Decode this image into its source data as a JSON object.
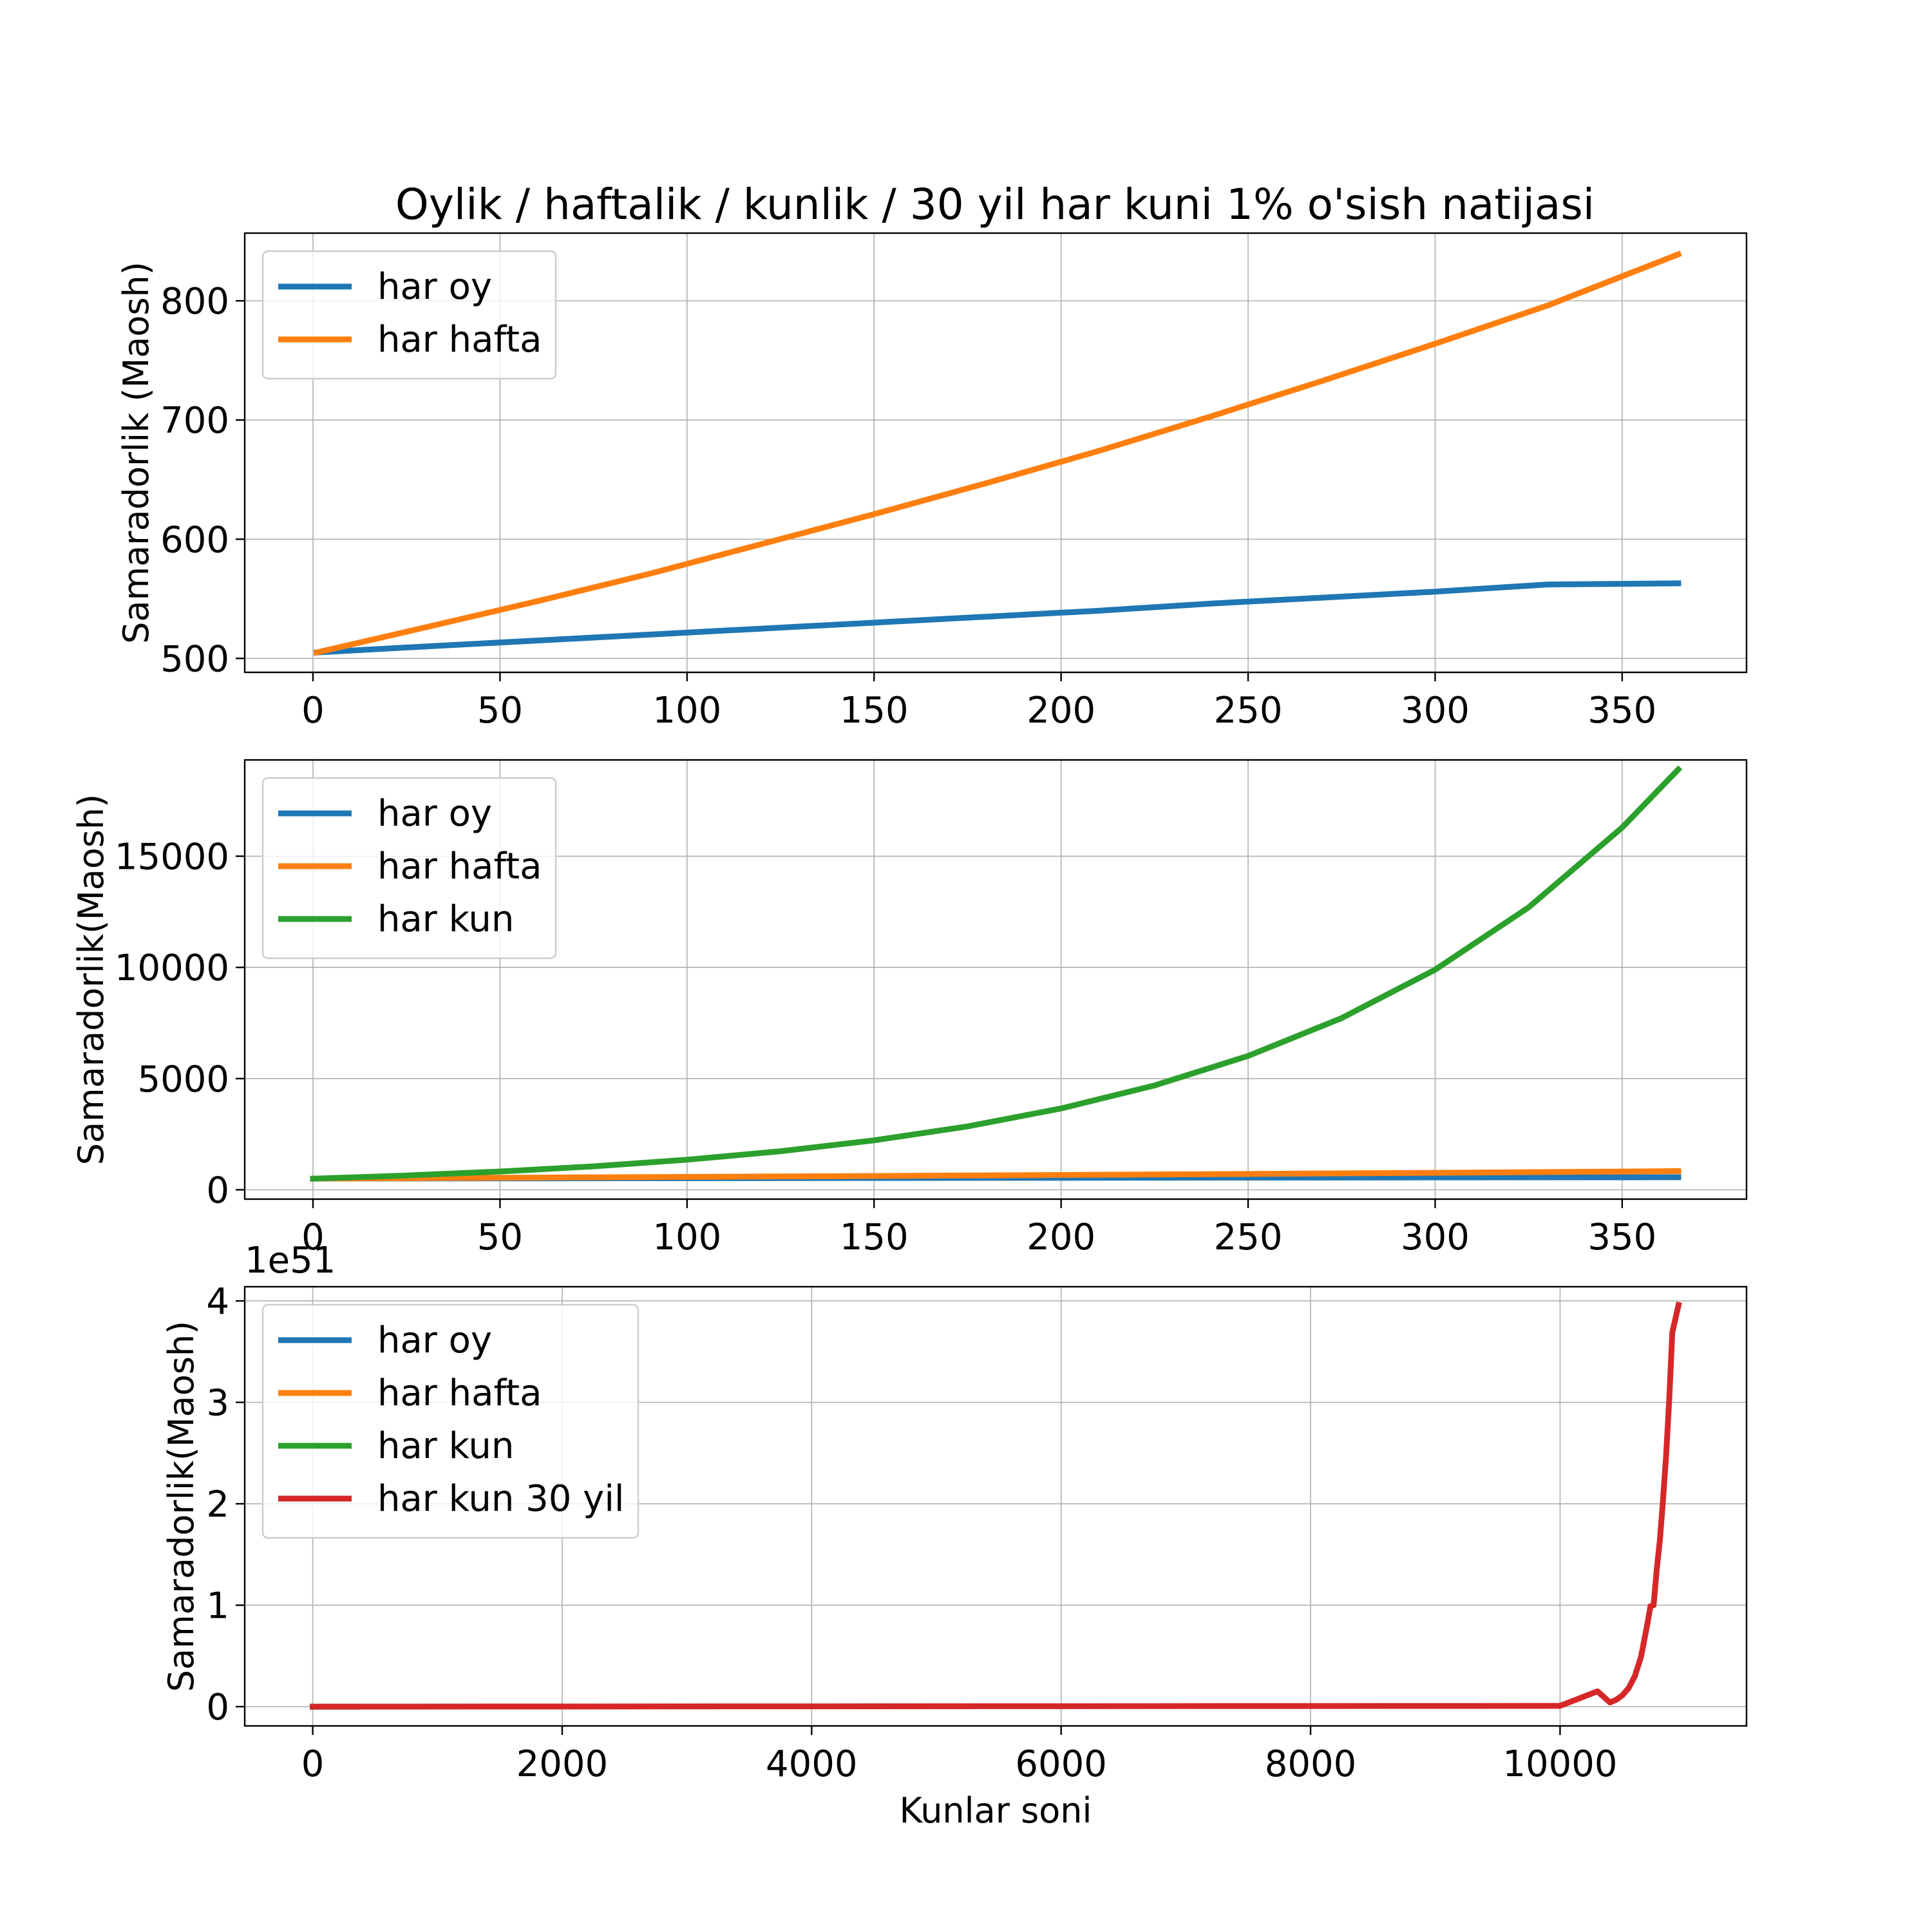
{
  "title": "Oylik / haftalik / kunlik / 30 yil har kuni   1%  o'sish natijasi",
  "colors": {
    "har_oy": "#1f77b4",
    "har_hafta": "#ff7f0e",
    "har_kun": "#2ca02c",
    "har_kun_30_yil": "#d62728"
  },
  "chart_data": [
    {
      "type": "line",
      "title": "Oylik / haftalik / kunlik / 30 yil har kuni   1%  o'sish natijasi",
      "xlabel": "",
      "ylabel": "Samaradorlik (Maosh)",
      "xlim": [
        -18.25,
        383.25
      ],
      "ylim": [
        488.3,
        856.8
      ],
      "xticks": [
        0,
        50,
        100,
        150,
        200,
        250,
        300,
        350
      ],
      "yticks": [
        500,
        600,
        700,
        800
      ],
      "xtick_labels": [
        "0",
        "50",
        "100",
        "150",
        "200",
        "250",
        "300",
        "350"
      ],
      "ytick_labels": [
        "500",
        "600",
        "700",
        "800"
      ],
      "grid": true,
      "legend_position": "upper-left",
      "series": [
        {
          "name": "har oy",
          "color": "#1f77b4",
          "x": [
            1,
            30,
            60,
            90,
            120,
            150,
            180,
            210,
            240,
            270,
            300,
            330,
            365
          ],
          "y": [
            505,
            510,
            515,
            520,
            525,
            530,
            535,
            540,
            546,
            551,
            556,
            562,
            563
          ]
        },
        {
          "name": "har hafta",
          "color": "#ff7f0e",
          "x": [
            1,
            30,
            60,
            90,
            120,
            150,
            180,
            210,
            240,
            270,
            300,
            330,
            365
          ],
          "y": [
            505,
            526,
            548,
            571,
            596,
            621,
            647,
            674,
            703,
            733,
            764,
            796,
            839
          ]
        }
      ]
    },
    {
      "type": "line",
      "title": "",
      "xlabel": "",
      "ylabel": "Samaradorlik(Maosh)",
      "xlim": [
        -18.25,
        383.25
      ],
      "ylim": [
        -420,
        19330
      ],
      "xticks": [
        0,
        50,
        100,
        150,
        200,
        250,
        300,
        350
      ],
      "yticks": [
        0,
        5000,
        10000,
        15000
      ],
      "xtick_labels": [
        "0",
        "50",
        "100",
        "150",
        "200",
        "250",
        "300",
        "350"
      ],
      "ytick_labels": [
        "0",
        "5000",
        "10000",
        "15000"
      ],
      "grid": true,
      "legend_position": "upper-left",
      "series": [
        {
          "name": "har oy",
          "color": "#1f77b4",
          "x": [
            1,
            60,
            120,
            180,
            240,
            300,
            365
          ],
          "y": [
            505,
            515,
            525,
            535,
            546,
            556,
            563
          ]
        },
        {
          "name": "har hafta",
          "color": "#ff7f0e",
          "x": [
            1,
            60,
            120,
            180,
            240,
            300,
            365
          ],
          "y": [
            505,
            548,
            596,
            647,
            703,
            764,
            839
          ]
        },
        {
          "name": "har kun",
          "color": "#2ca02c",
          "x": [
            0,
            25,
            50,
            75,
            100,
            125,
            150,
            175,
            200,
            225,
            250,
            275,
            300,
            325,
            350,
            365
          ],
          "y": [
            500,
            642,
            822,
            1054,
            1352,
            1734,
            2224,
            2851,
            3658,
            4692,
            6020,
            7720,
            9897,
            12700,
            16290,
            18900
          ]
        }
      ]
    },
    {
      "type": "line",
      "title": "",
      "xlabel": "Kunlar soni",
      "ylabel": "Samaradorlik(Maosh)",
      "axis_offset_text": "1e51",
      "xlim": [
        -545,
        11495
      ],
      "ylim": [
        -1.9e+50,
        4.14e+51
      ],
      "xticks": [
        0,
        2000,
        4000,
        6000,
        8000,
        10000
      ],
      "yticks": [
        0,
        1e+51,
        2e+51,
        3e+51,
        4e+51
      ],
      "xtick_labels": [
        "0",
        "2000",
        "4000",
        "6000",
        "8000",
        "10000"
      ],
      "ytick_labels": [
        "0",
        "1",
        "2",
        "3",
        "4"
      ],
      "grid": true,
      "legend_position": "upper-left",
      "series": [
        {
          "name": "har oy",
          "color": "#1f77b4",
          "x": [
            1,
            365
          ],
          "y": [
            505,
            563
          ]
        },
        {
          "name": "har hafta",
          "color": "#ff7f0e",
          "x": [
            1,
            365
          ],
          "y": [
            505,
            839
          ]
        },
        {
          "name": "har kun",
          "color": "#2ca02c",
          "x": [
            0,
            365
          ],
          "y": [
            500,
            18900
          ]
        },
        {
          "name": "har kun 30 yil",
          "color": "#d62728",
          "x": [
            0,
            10000,
            10300,
            10400,
            10450,
            10500,
            10550,
            10600,
            10650,
            10700,
            10725,
            10750,
            10775,
            10800,
            10825,
            10850,
            10875,
            10900,
            10950
          ],
          "y": [
            0,
            7.7e+48,
            1.51e+50,
            4.13e+49,
            6.79e+49,
            1.116e+50,
            1.835e+50,
            3.017e+50,
            4.959e+50,
            8.153e+50,
            9.908e+50,
            1e+51,
            1.35e+51,
            1.637e+51,
            2.03e+51,
            2.47e+51,
            3.02e+51,
            3.69e+51,
            3.96e+51
          ]
        }
      ]
    }
  ]
}
